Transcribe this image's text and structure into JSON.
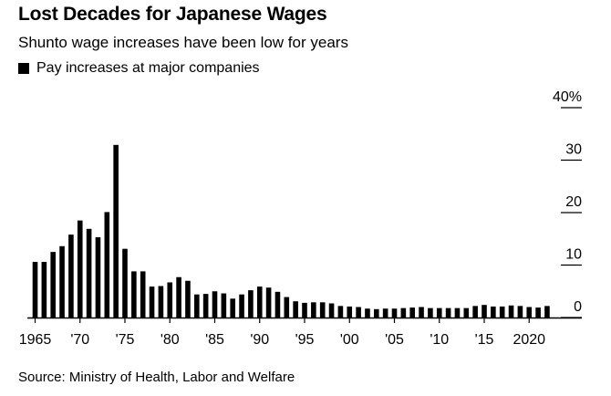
{
  "header": {
    "title": "Lost Decades for Japanese Wages",
    "subtitle": "Shunto wage increases have been low for years"
  },
  "legend": {
    "label": "Pay increases at major companies"
  },
  "source": "Source: Ministry of Health, Labor and Welfare",
  "colors": {
    "bar": "#000000",
    "axis": "#000000",
    "background": "#ffffff"
  },
  "chart_data": {
    "type": "bar",
    "title": "Lost Decades for Japanese Wages",
    "subtitle": "Shunto wage increases have been low for years",
    "series": [
      {
        "name": "Pay increases at major companies",
        "x": [
          1965,
          1966,
          1967,
          1968,
          1969,
          1970,
          1971,
          1972,
          1973,
          1974,
          1975,
          1976,
          1977,
          1978,
          1979,
          1980,
          1981,
          1982,
          1983,
          1984,
          1985,
          1986,
          1987,
          1988,
          1989,
          1990,
          1991,
          1992,
          1993,
          1994,
          1995,
          1996,
          1997,
          1998,
          1999,
          2000,
          2001,
          2002,
          2003,
          2004,
          2005,
          2006,
          2007,
          2008,
          2009,
          2010,
          2011,
          2012,
          2013,
          2014,
          2015,
          2016,
          2017,
          2018,
          2019,
          2020,
          2021,
          2022
        ],
        "values": [
          10.6,
          10.6,
          12.5,
          13.6,
          15.8,
          18.5,
          16.9,
          15.3,
          20.1,
          32.9,
          13.1,
          8.8,
          8.8,
          5.9,
          6.0,
          6.7,
          7.7,
          7.0,
          4.4,
          4.5,
          5.0,
          4.6,
          3.6,
          4.4,
          5.2,
          5.9,
          5.7,
          4.9,
          3.9,
          3.1,
          2.8,
          2.9,
          2.9,
          2.7,
          2.2,
          2.1,
          2.0,
          1.7,
          1.6,
          1.7,
          1.7,
          1.8,
          1.9,
          2.0,
          1.8,
          1.8,
          1.8,
          1.8,
          1.8,
          2.2,
          2.4,
          2.1,
          2.1,
          2.3,
          2.2,
          2.0,
          1.9,
          2.2
        ]
      }
    ],
    "x_ticks": [
      "1965",
      "'70",
      "'75",
      "'80",
      "'85",
      "'90",
      "'95",
      "'00",
      "'05",
      "'10",
      "'15",
      "2020"
    ],
    "y_ticks": [
      "0",
      "10",
      "20",
      "30",
      "40%"
    ],
    "y_tick_values": [
      0,
      10,
      20,
      30,
      40
    ],
    "ylim": [
      0,
      40
    ],
    "xlabel": "",
    "ylabel": "",
    "legend_position": "top-left",
    "y_axis_side": "right",
    "grid": false
  }
}
